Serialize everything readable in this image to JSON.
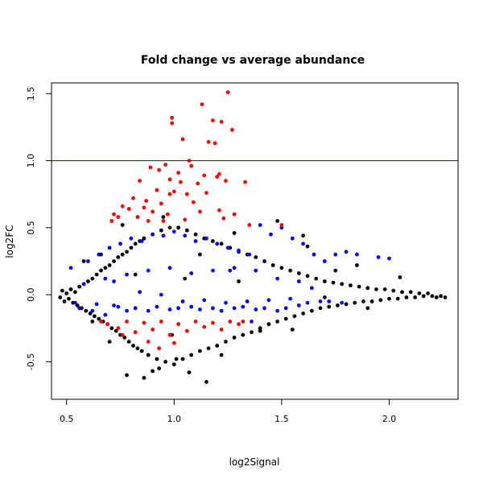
{
  "chart_data": {
    "type": "scatter",
    "title": "Fold change vs average abundance",
    "xlabel": "log2Signal",
    "ylabel": "log2FC",
    "xlim": [
      0.43,
      2.32
    ],
    "ylim": [
      -0.78,
      1.58
    ],
    "x_ticks": [
      {
        "value": 0.5,
        "label": "0.5"
      },
      {
        "value": 1.0,
        "label": "1.0"
      },
      {
        "value": 1.5,
        "label": "1.5"
      },
      {
        "value": 2.0,
        "label": "2.0"
      }
    ],
    "y_ticks": [
      {
        "value": -0.5,
        "label": "-0.5"
      },
      {
        "value": 0.0,
        "label": "0.0"
      },
      {
        "value": 0.5,
        "label": "0.5"
      },
      {
        "value": 1.0,
        "label": "1.0"
      },
      {
        "value": 1.5,
        "label": "1.5"
      }
    ],
    "reference_lines": [
      {
        "axis": "y",
        "value": 1.0,
        "color": "#0000ff"
      }
    ],
    "grid": false,
    "legend": "none",
    "series": [
      {
        "color": "#000000",
        "points": [
          [
            0.47,
            -0.02
          ],
          [
            0.48,
            0.03
          ],
          [
            0.49,
            -0.05
          ],
          [
            0.5,
            0.01
          ],
          [
            0.51,
            -0.03
          ],
          [
            0.52,
            0.04
          ],
          [
            0.53,
            -0.06
          ],
          [
            0.54,
            0.02
          ],
          [
            0.55,
            -0.08
          ],
          [
            0.56,
            0.06
          ],
          [
            0.57,
            -0.1
          ],
          [
            0.58,
            0.08
          ],
          [
            0.59,
            -0.12
          ],
          [
            0.6,
            0.1
          ],
          [
            0.61,
            -0.14
          ],
          [
            0.62,
            0.12
          ],
          [
            0.63,
            -0.16
          ],
          [
            0.64,
            0.15
          ],
          [
            0.65,
            -0.18
          ],
          [
            0.66,
            0.18
          ],
          [
            0.67,
            -0.2
          ],
          [
            0.68,
            0.2
          ],
          [
            0.69,
            -0.22
          ],
          [
            0.7,
            0.22
          ],
          [
            0.71,
            -0.25
          ],
          [
            0.72,
            0.25
          ],
          [
            0.73,
            -0.27
          ],
          [
            0.74,
            0.28
          ],
          [
            0.75,
            -0.3
          ],
          [
            0.76,
            0.3
          ],
          [
            0.77,
            -0.32
          ],
          [
            0.78,
            0.32
          ],
          [
            0.79,
            -0.35
          ],
          [
            0.8,
            0.35
          ],
          [
            0.81,
            -0.38
          ],
          [
            0.82,
            0.38
          ],
          [
            0.83,
            -0.4
          ],
          [
            0.84,
            0.4
          ],
          [
            0.85,
            -0.42
          ],
          [
            0.86,
            0.42
          ],
          [
            0.88,
            -0.45
          ],
          [
            0.9,
            0.45
          ],
          [
            0.92,
            -0.48
          ],
          [
            0.94,
            0.48
          ],
          [
            0.96,
            -0.5
          ],
          [
            0.98,
            0.5
          ],
          [
            1.0,
            -0.52
          ],
          [
            1.02,
            0.5
          ],
          [
            1.04,
            -0.48
          ],
          [
            1.06,
            0.48
          ],
          [
            1.08,
            -0.45
          ],
          [
            1.1,
            0.45
          ],
          [
            1.12,
            -0.42
          ],
          [
            1.14,
            0.42
          ],
          [
            1.16,
            -0.4
          ],
          [
            1.18,
            0.4
          ],
          [
            1.2,
            -0.38
          ],
          [
            1.22,
            0.38
          ],
          [
            1.24,
            -0.35
          ],
          [
            1.26,
            0.35
          ],
          [
            1.28,
            -0.32
          ],
          [
            1.3,
            0.32
          ],
          [
            1.32,
            -0.3
          ],
          [
            1.34,
            0.3
          ],
          [
            1.36,
            -0.28
          ],
          [
            1.38,
            0.28
          ],
          [
            1.4,
            -0.25
          ],
          [
            1.42,
            0.25
          ],
          [
            1.44,
            -0.22
          ],
          [
            1.46,
            0.22
          ],
          [
            1.48,
            -0.2
          ],
          [
            1.5,
            0.2
          ],
          [
            1.52,
            -0.18
          ],
          [
            1.54,
            0.18
          ],
          [
            1.56,
            -0.16
          ],
          [
            1.58,
            0.16
          ],
          [
            1.6,
            -0.14
          ],
          [
            1.62,
            0.14
          ],
          [
            1.64,
            -0.12
          ],
          [
            1.66,
            0.12
          ],
          [
            1.68,
            -0.1
          ],
          [
            1.7,
            0.1
          ],
          [
            1.72,
            -0.09
          ],
          [
            1.74,
            0.09
          ],
          [
            1.76,
            -0.08
          ],
          [
            1.78,
            0.08
          ],
          [
            1.8,
            -0.07
          ],
          [
            1.82,
            0.07
          ],
          [
            1.84,
            -0.06
          ],
          [
            1.86,
            0.06
          ],
          [
            1.88,
            -0.05
          ],
          [
            1.9,
            0.05
          ],
          [
            1.92,
            -0.05
          ],
          [
            1.94,
            0.04
          ],
          [
            1.96,
            -0.04
          ],
          [
            1.98,
            0.04
          ],
          [
            2.0,
            -0.03
          ],
          [
            2.02,
            0.03
          ],
          [
            2.04,
            -0.03
          ],
          [
            2.06,
            0.02
          ],
          [
            2.08,
            -0.02
          ],
          [
            2.1,
            0.02
          ],
          [
            2.12,
            -0.02
          ],
          [
            2.14,
            0.01
          ],
          [
            2.16,
            -0.01
          ],
          [
            2.18,
            0.01
          ],
          [
            2.2,
            -0.01
          ],
          [
            2.22,
            -0.02
          ],
          [
            2.24,
            -0.01
          ],
          [
            2.26,
            -0.02
          ],
          [
            0.78,
            -0.6
          ],
          [
            0.86,
            -0.62
          ],
          [
            0.93,
            -0.55
          ],
          [
            1.07,
            -0.58
          ],
          [
            1.15,
            -0.65
          ],
          [
            0.9,
            -0.57
          ],
          [
            1.01,
            -0.48
          ],
          [
            1.22,
            -0.45
          ],
          [
            0.76,
            0.52
          ],
          [
            0.95,
            0.58
          ],
          [
            1.48,
            0.55
          ],
          [
            1.6,
            0.44
          ],
          [
            1.85,
            0.22
          ],
          [
            2.05,
            0.13
          ],
          [
            1.62,
            0.36
          ],
          [
            1.28,
            0.46
          ],
          [
            0.66,
            0.3
          ],
          [
            0.7,
            -0.35
          ],
          [
            0.99,
            -0.3
          ],
          [
            1.4,
            -0.27
          ],
          [
            0.58,
            0.25
          ],
          [
            0.62,
            -0.2
          ],
          [
            1.12,
            0.3
          ],
          [
            1.9,
            -0.1
          ],
          [
            1.75,
            0.18
          ],
          [
            1.55,
            -0.26
          ],
          [
            0.82,
            0.15
          ],
          [
            1.05,
            0.12
          ],
          [
            1.3,
            0.1
          ],
          [
            1.7,
            -0.02
          ]
        ]
      },
      {
        "color": "#0000ff",
        "points": [
          [
            0.52,
            0.2
          ],
          [
            0.56,
            -0.1
          ],
          [
            0.6,
            0.25
          ],
          [
            0.62,
            -0.12
          ],
          [
            0.65,
            0.3
          ],
          [
            0.68,
            -0.15
          ],
          [
            0.7,
            0.35
          ],
          [
            0.72,
            -0.08
          ],
          [
            0.75,
            0.38
          ],
          [
            0.78,
            -0.12
          ],
          [
            0.8,
            0.42
          ],
          [
            0.82,
            -0.1
          ],
          [
            0.85,
            0.4
          ],
          [
            0.88,
            -0.12
          ],
          [
            0.9,
            0.45
          ],
          [
            0.92,
            -0.09
          ],
          [
            0.95,
            0.44
          ],
          [
            0.98,
            -0.11
          ],
          [
            1.0,
            0.47
          ],
          [
            1.02,
            -0.1
          ],
          [
            1.05,
            0.44
          ],
          [
            1.08,
            -0.09
          ],
          [
            1.1,
            0.4
          ],
          [
            1.12,
            -0.11
          ],
          [
            1.15,
            0.42
          ],
          [
            1.18,
            -0.1
          ],
          [
            1.2,
            0.38
          ],
          [
            1.22,
            -0.12
          ],
          [
            1.25,
            0.35
          ],
          [
            1.28,
            -0.1
          ],
          [
            1.3,
            0.33
          ],
          [
            1.32,
            -0.09
          ],
          [
            1.35,
            0.3
          ],
          [
            1.38,
            -0.11
          ],
          [
            1.4,
            0.52
          ],
          [
            1.42,
            -0.1
          ],
          [
            1.45,
            0.45
          ],
          [
            1.48,
            -0.12
          ],
          [
            1.5,
            0.5
          ],
          [
            1.52,
            -0.1
          ],
          [
            1.55,
            0.42
          ],
          [
            1.58,
            -0.08
          ],
          [
            1.6,
            0.38
          ],
          [
            1.62,
            -0.06
          ],
          [
            1.65,
            0.3
          ],
          [
            1.68,
            -0.05
          ],
          [
            1.7,
            0.25
          ],
          [
            1.72,
            -0.05
          ],
          [
            1.75,
            0.3
          ],
          [
            1.78,
            -0.06
          ],
          [
            1.8,
            0.32
          ],
          [
            1.85,
            0.3
          ],
          [
            1.95,
            0.28
          ],
          [
            2.0,
            0.27
          ],
          [
            0.54,
            -0.06
          ],
          [
            0.64,
            -0.07
          ],
          [
            0.74,
            -0.09
          ],
          [
            0.84,
            0.02
          ],
          [
            0.94,
            0.0
          ],
          [
            1.04,
            -0.05
          ],
          [
            1.14,
            -0.04
          ],
          [
            1.24,
            -0.06
          ],
          [
            1.34,
            -0.05
          ],
          [
            1.44,
            -0.04
          ],
          [
            1.54,
            -0.03
          ],
          [
            1.64,
            0.05
          ],
          [
            0.58,
            0.08
          ],
          [
            0.68,
            0.12
          ],
          [
            0.78,
            0.15
          ],
          [
            0.88,
            0.18
          ],
          [
            0.98,
            0.2
          ],
          [
            1.08,
            0.16
          ],
          [
            1.18,
            0.18
          ],
          [
            1.28,
            0.2
          ],
          [
            1.38,
            0.18
          ],
          [
            1.48,
            0.12
          ],
          [
            1.58,
            0.1
          ],
          [
            1.26,
            0.18
          ],
          [
            0.72,
            0.1
          ],
          [
            1.36,
            -0.2
          ]
        ]
      },
      {
        "color": "#ff0000",
        "points": [
          [
            1.25,
            1.51
          ],
          [
            1.13,
            1.42
          ],
          [
            0.99,
            1.32
          ],
          [
            0.99,
            1.28
          ],
          [
            1.18,
            1.3
          ],
          [
            1.22,
            1.29
          ],
          [
            1.27,
            1.23
          ],
          [
            1.04,
            1.16
          ],
          [
            1.16,
            1.14
          ],
          [
            1.19,
            1.13
          ],
          [
            1.07,
            1.0
          ],
          [
            0.89,
            0.95
          ],
          [
            0.93,
            0.93
          ],
          [
            0.96,
            0.97
          ],
          [
            1.08,
            0.96
          ],
          [
            1.02,
            0.91
          ],
          [
            1.14,
            0.89
          ],
          [
            1.2,
            0.88
          ],
          [
            1.21,
            0.9
          ],
          [
            0.84,
            0.85
          ],
          [
            0.98,
            0.86
          ],
          [
            1.03,
            0.84
          ],
          [
            1.11,
            0.83
          ],
          [
            1.24,
            0.85
          ],
          [
            1.33,
            0.84
          ],
          [
            0.92,
            0.78
          ],
          [
            1.0,
            0.77
          ],
          [
            1.06,
            0.75
          ],
          [
            1.15,
            0.76
          ],
          [
            0.81,
            0.72
          ],
          [
            0.87,
            0.7
          ],
          [
            0.94,
            0.68
          ],
          [
            1.09,
            0.69
          ],
          [
            0.76,
            0.66
          ],
          [
            0.79,
            0.64
          ],
          [
            0.86,
            0.65
          ],
          [
            0.9,
            0.62
          ],
          [
            0.97,
            0.6
          ],
          [
            1.12,
            0.62
          ],
          [
            1.21,
            0.63
          ],
          [
            0.74,
            0.58
          ],
          [
            0.83,
            0.58
          ],
          [
            0.88,
            0.55
          ],
          [
            0.95,
            0.55
          ],
          [
            1.05,
            0.56
          ],
          [
            1.23,
            0.57
          ],
          [
            1.28,
            0.6
          ],
          [
            0.71,
            0.55
          ],
          [
            1.35,
            0.52
          ],
          [
            1.5,
            0.52
          ],
          [
            0.98,
            0.75
          ],
          [
            0.72,
            0.6
          ],
          [
            0.69,
            -0.22
          ],
          [
            0.74,
            -0.25
          ],
          [
            0.78,
            -0.2
          ],
          [
            0.82,
            -0.28
          ],
          [
            0.86,
            -0.21
          ],
          [
            0.9,
            -0.26
          ],
          [
            0.94,
            -0.2
          ],
          [
            0.98,
            -0.3
          ],
          [
            1.02,
            -0.22
          ],
          [
            1.06,
            -0.27
          ],
          [
            1.1,
            -0.2
          ],
          [
            1.14,
            -0.24
          ],
          [
            1.18,
            -0.21
          ],
          [
            1.22,
            -0.26
          ],
          [
            1.26,
            -0.2
          ],
          [
            1.3,
            -0.22
          ],
          [
            0.76,
            -0.3
          ],
          [
            0.88,
            -0.35
          ],
          [
            1.0,
            -0.36
          ],
          [
            0.66,
            -0.2
          ],
          [
            1.32,
            -0.2
          ],
          [
            0.93,
            -0.4
          ]
        ]
      }
    ]
  }
}
